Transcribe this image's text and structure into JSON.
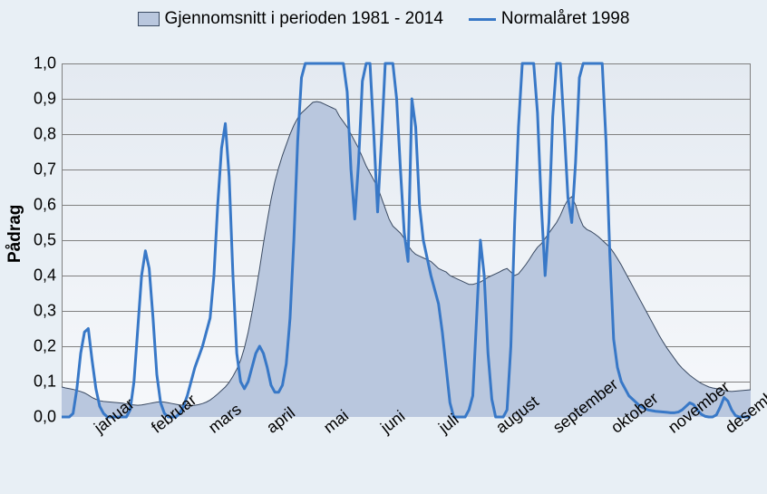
{
  "chart": {
    "type": "area+line",
    "background_outer": "#e8eff5",
    "plot_bg_top": "#e4eaf1",
    "plot_bg_bottom": "#f6f8fb",
    "grid_color": "#808080",
    "border_color": "#808080",
    "ylabel": "Pådrag",
    "label_fontsize": 19,
    "legend_fontsize": 19,
    "tick_fontsize": 18,
    "ylim": [
      0.0,
      1.0
    ],
    "ytick_step": 0.1,
    "yticks": [
      "0,0",
      "0,1",
      "0,2",
      "0,3",
      "0,4",
      "0,5",
      "0,6",
      "0,7",
      "0,8",
      "0,9",
      "1,0"
    ],
    "xticks": [
      "januar",
      "februar",
      "mars",
      "april",
      "mai",
      "juni",
      "juli",
      "august",
      "september",
      "oktober",
      "november",
      "desember"
    ],
    "series_area": {
      "label": "Gjennomsnitt i perioden 1981 - 2014",
      "fill_color": "#b9c7de",
      "stroke_color": "#3a4a62",
      "stroke_width": 1,
      "fill_opacity": 1,
      "values": [
        0.085,
        0.082,
        0.08,
        0.078,
        0.075,
        0.072,
        0.068,
        0.062,
        0.055,
        0.05,
        0.046,
        0.044,
        0.043,
        0.042,
        0.041,
        0.04,
        0.039,
        0.037,
        0.035,
        0.034,
        0.033,
        0.034,
        0.036,
        0.038,
        0.04,
        0.042,
        0.043,
        0.042,
        0.04,
        0.038,
        0.036,
        0.034,
        0.033,
        0.032,
        0.032,
        0.033,
        0.035,
        0.038,
        0.042,
        0.048,
        0.056,
        0.065,
        0.075,
        0.085,
        0.098,
        0.115,
        0.135,
        0.16,
        0.195,
        0.24,
        0.295,
        0.355,
        0.42,
        0.49,
        0.555,
        0.615,
        0.665,
        0.705,
        0.74,
        0.77,
        0.8,
        0.825,
        0.845,
        0.86,
        0.87,
        0.88,
        0.89,
        0.892,
        0.89,
        0.885,
        0.88,
        0.875,
        0.87,
        0.85,
        0.835,
        0.82,
        0.8,
        0.78,
        0.76,
        0.735,
        0.71,
        0.69,
        0.67,
        0.65,
        0.62,
        0.59,
        0.56,
        0.54,
        0.53,
        0.52,
        0.505,
        0.485,
        0.47,
        0.46,
        0.455,
        0.45,
        0.445,
        0.44,
        0.43,
        0.42,
        0.415,
        0.41,
        0.4,
        0.395,
        0.39,
        0.385,
        0.38,
        0.375,
        0.375,
        0.378,
        0.382,
        0.388,
        0.395,
        0.4,
        0.405,
        0.41,
        0.416,
        0.42,
        0.41,
        0.4,
        0.405,
        0.418,
        0.432,
        0.448,
        0.465,
        0.48,
        0.49,
        0.505,
        0.52,
        0.535,
        0.55,
        0.57,
        0.595,
        0.615,
        0.623,
        0.6,
        0.565,
        0.54,
        0.53,
        0.525,
        0.518,
        0.51,
        0.5,
        0.49,
        0.48,
        0.465,
        0.448,
        0.43,
        0.41,
        0.39,
        0.37,
        0.35,
        0.33,
        0.31,
        0.29,
        0.27,
        0.25,
        0.23,
        0.212,
        0.195,
        0.18,
        0.165,
        0.15,
        0.138,
        0.128,
        0.118,
        0.11,
        0.102,
        0.095,
        0.09,
        0.085,
        0.082,
        0.08,
        0.078,
        0.075,
        0.073,
        0.072,
        0.073,
        0.074,
        0.075,
        0.076,
        0.077
      ]
    },
    "series_line": {
      "label": "Normalåret 1998",
      "stroke_color": "#3878c7",
      "stroke_width": 3,
      "values": [
        0.0,
        0.0,
        0.0,
        0.01,
        0.08,
        0.18,
        0.24,
        0.25,
        0.16,
        0.08,
        0.03,
        0.01,
        0.0,
        0.0,
        0.0,
        0.0,
        0.0,
        0.0,
        0.02,
        0.1,
        0.25,
        0.4,
        0.47,
        0.42,
        0.28,
        0.12,
        0.04,
        0.01,
        0.0,
        0.0,
        0.0,
        0.01,
        0.03,
        0.06,
        0.1,
        0.14,
        0.17,
        0.2,
        0.24,
        0.28,
        0.4,
        0.6,
        0.76,
        0.83,
        0.68,
        0.4,
        0.18,
        0.1,
        0.08,
        0.1,
        0.14,
        0.18,
        0.2,
        0.18,
        0.14,
        0.09,
        0.07,
        0.07,
        0.09,
        0.15,
        0.28,
        0.5,
        0.78,
        0.96,
        1.0,
        1.0,
        1.0,
        1.0,
        1.0,
        1.0,
        1.0,
        1.0,
        1.0,
        1.0,
        1.0,
        0.92,
        0.7,
        0.56,
        0.72,
        0.95,
        1.0,
        1.0,
        0.8,
        0.58,
        0.78,
        1.0,
        1.0,
        1.0,
        0.9,
        0.7,
        0.52,
        0.44,
        0.9,
        0.82,
        0.6,
        0.5,
        0.45,
        0.4,
        0.36,
        0.32,
        0.24,
        0.14,
        0.04,
        0.0,
        0.0,
        0.0,
        0.0,
        0.02,
        0.06,
        0.28,
        0.5,
        0.4,
        0.18,
        0.05,
        0.0,
        0.0,
        0.0,
        0.02,
        0.2,
        0.55,
        0.82,
        1.0,
        1.0,
        1.0,
        1.0,
        0.86,
        0.6,
        0.4,
        0.55,
        0.85,
        1.0,
        1.0,
        0.82,
        0.62,
        0.55,
        0.72,
        0.96,
        1.0,
        1.0,
        1.0,
        1.0,
        1.0,
        1.0,
        0.78,
        0.46,
        0.22,
        0.14,
        0.1,
        0.08,
        0.06,
        0.05,
        0.04,
        0.03,
        0.025,
        0.02,
        0.018,
        0.016,
        0.015,
        0.014,
        0.013,
        0.012,
        0.012,
        0.014,
        0.02,
        0.03,
        0.04,
        0.035,
        0.02,
        0.008,
        0.002,
        0.0,
        0.0,
        0.006,
        0.028,
        0.055,
        0.045,
        0.02,
        0.004,
        0.0,
        0.0,
        0.0,
        0.0
      ]
    }
  }
}
